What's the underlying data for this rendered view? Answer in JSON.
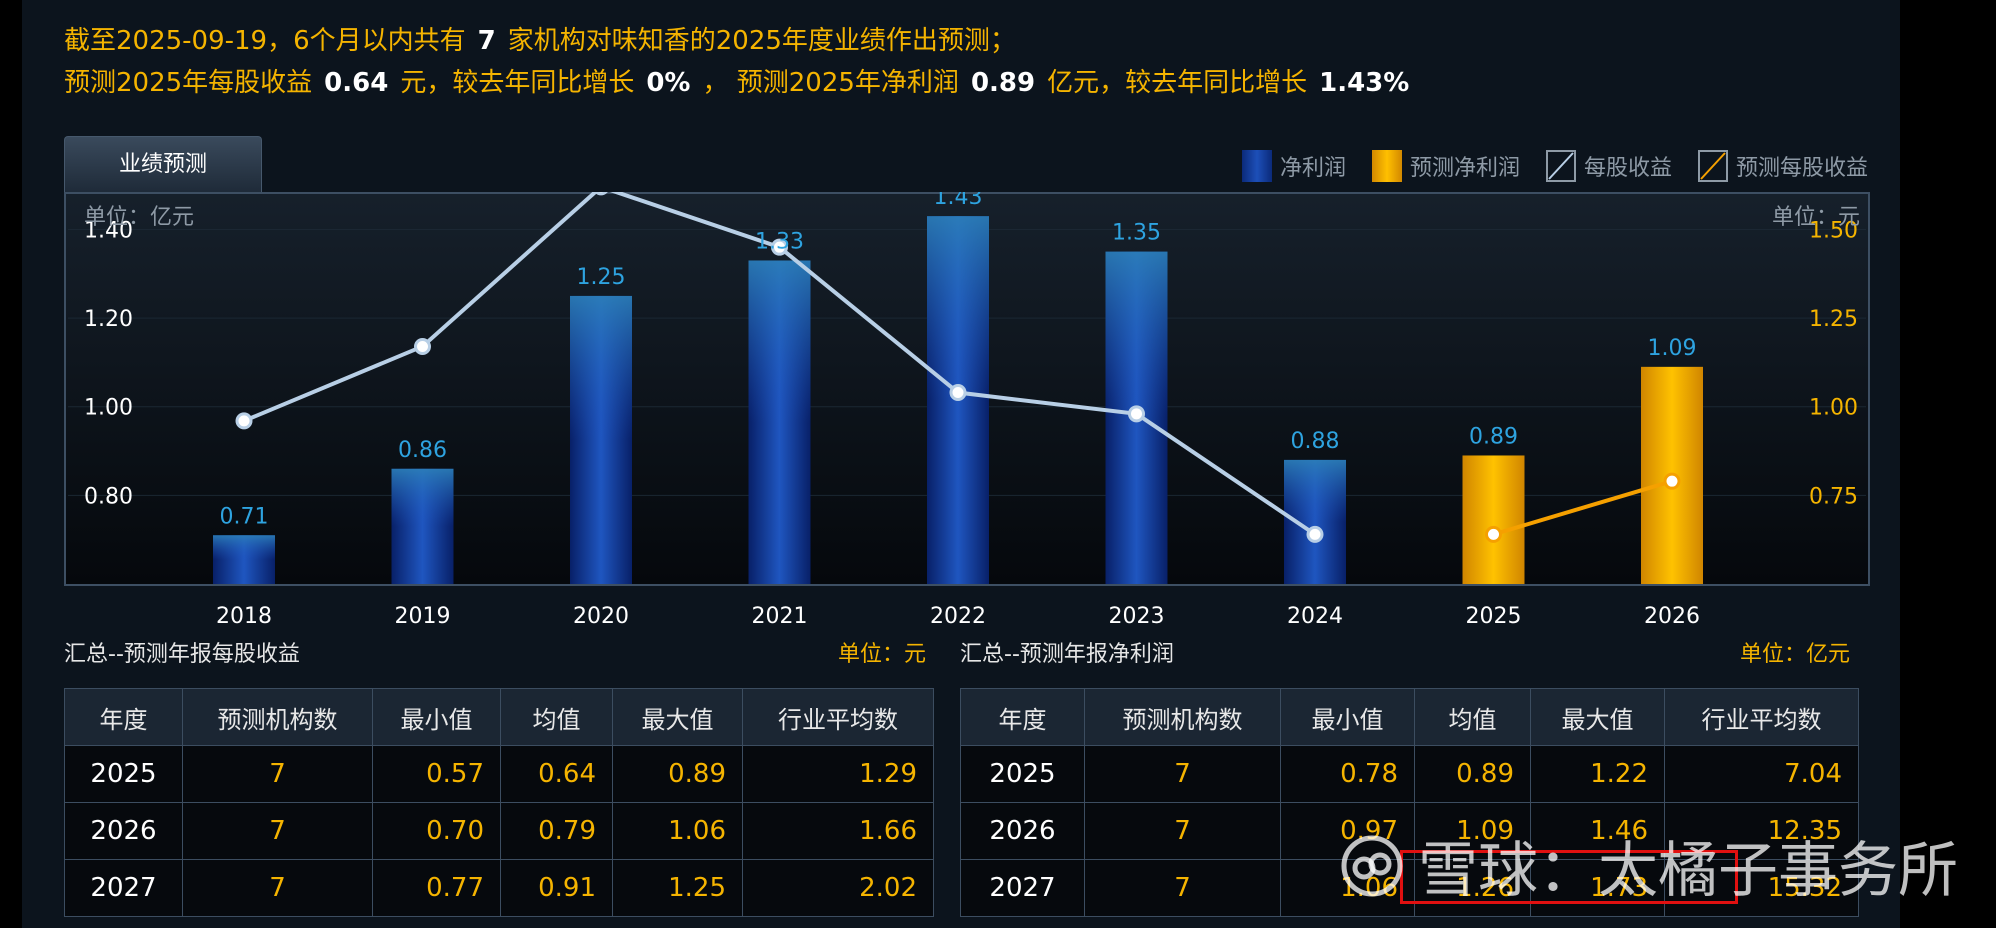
{
  "summary": {
    "line1_prefix": "截至2025-09-19，6个月以内共有",
    "institution_count": "7",
    "line1_suffix": "家机构对味知香的2025年度业绩作出预测；",
    "eps_label": "预测2025年每股收益",
    "eps_value": "0.64",
    "eps_growth_label": "元，较去年同比增长",
    "eps_growth": "0%",
    "profit_label": "， 预测2025年净利润",
    "profit_value": "0.89",
    "profit_growth_label": "亿元，较去年同比增长",
    "profit_growth": "1.43%"
  },
  "tab": {
    "label": "业绩预测"
  },
  "legend": [
    {
      "label": "净利润",
      "type": "bar",
      "color": "#1d4fb8"
    },
    {
      "label": "预测净利润",
      "type": "bar",
      "color": "#ffc000"
    },
    {
      "label": "每股收益",
      "type": "line",
      "color": "#b8cfe6"
    },
    {
      "label": "预测每股收益",
      "type": "line",
      "color": "#f5a000"
    }
  ],
  "chart_data": {
    "type": "bar",
    "categories": [
      "2018",
      "2019",
      "2020",
      "2021",
      "2022",
      "2023",
      "2024",
      "2025",
      "2026"
    ],
    "series": [
      {
        "name": "净利润",
        "axis": "left",
        "values": [
          0.71,
          0.86,
          1.25,
          1.33,
          1.43,
          1.35,
          0.88,
          null,
          null
        ]
      },
      {
        "name": "预测净利润",
        "axis": "left",
        "values": [
          null,
          null,
          null,
          null,
          null,
          null,
          null,
          0.89,
          1.09
        ]
      },
      {
        "name": "每股收益",
        "axis": "right",
        "type": "line",
        "values": [
          0.96,
          1.17,
          1.62,
          1.45,
          1.04,
          0.98,
          0.64,
          null,
          null
        ]
      },
      {
        "name": "预测每股收益",
        "axis": "right",
        "type": "line",
        "values": [
          null,
          null,
          null,
          null,
          null,
          null,
          null,
          0.64,
          0.79
        ]
      }
    ],
    "bar_labels": [
      "0.71",
      "0.86",
      "1.25",
      "1.33",
      "1.43",
      "1.35",
      "0.88",
      "0.89",
      "1.09"
    ],
    "left_unit": "单位：亿元",
    "right_unit": "单位：元",
    "y_left_ticks": [
      "1.40",
      "1.20",
      "1.00",
      "0.80"
    ],
    "y_left_tick_values": [
      1.4,
      1.2,
      1.0,
      0.8
    ],
    "y_left_range": [
      0.6,
      1.48
    ],
    "y_right_ticks": [
      "1.50",
      "1.25",
      "1.00",
      "0.75"
    ],
    "y_right_tick_values": [
      1.5,
      1.25,
      1.0,
      0.75
    ],
    "y_right_range": [
      0.5,
      1.6
    ],
    "colors": {
      "actual_bar": "#1d4fb8",
      "forecast_bar": "#ffc000",
      "actual_line": "#b8cfe6",
      "forecast_line": "#f5a000",
      "bar_label": "#2ea3e0",
      "left_tick": "#ffffff",
      "right_tick": "#f5b400"
    },
    "grid": true,
    "legend_position": "top-right"
  },
  "eps_table": {
    "title": "汇总--预测年报每股收益",
    "unit": "单位：元",
    "headers": [
      "年度",
      "预测机构数",
      "最小值",
      "均值",
      "最大值",
      "行业平均数"
    ],
    "rows": [
      [
        "2025",
        "7",
        "0.57",
        "0.64",
        "0.89",
        "1.29"
      ],
      [
        "2026",
        "7",
        "0.70",
        "0.79",
        "1.06",
        "1.66"
      ],
      [
        "2027",
        "7",
        "0.77",
        "0.91",
        "1.25",
        "2.02"
      ]
    ]
  },
  "profit_table": {
    "title": "汇总--预测年报净利润",
    "unit": "单位：亿元",
    "headers": [
      "年度",
      "预测机构数",
      "最小值",
      "均值",
      "最大值",
      "行业平均数"
    ],
    "rows": [
      [
        "2025",
        "7",
        "0.78",
        "0.89",
        "1.22",
        "7.04"
      ],
      [
        "2026",
        "7",
        "0.97",
        "1.09",
        "1.46",
        "12.35"
      ],
      [
        "2027",
        "7",
        "1.06",
        "1.26",
        "1.73",
        "15.32"
      ]
    ]
  },
  "watermark": {
    "text": "雪球：太橘子事务所"
  }
}
